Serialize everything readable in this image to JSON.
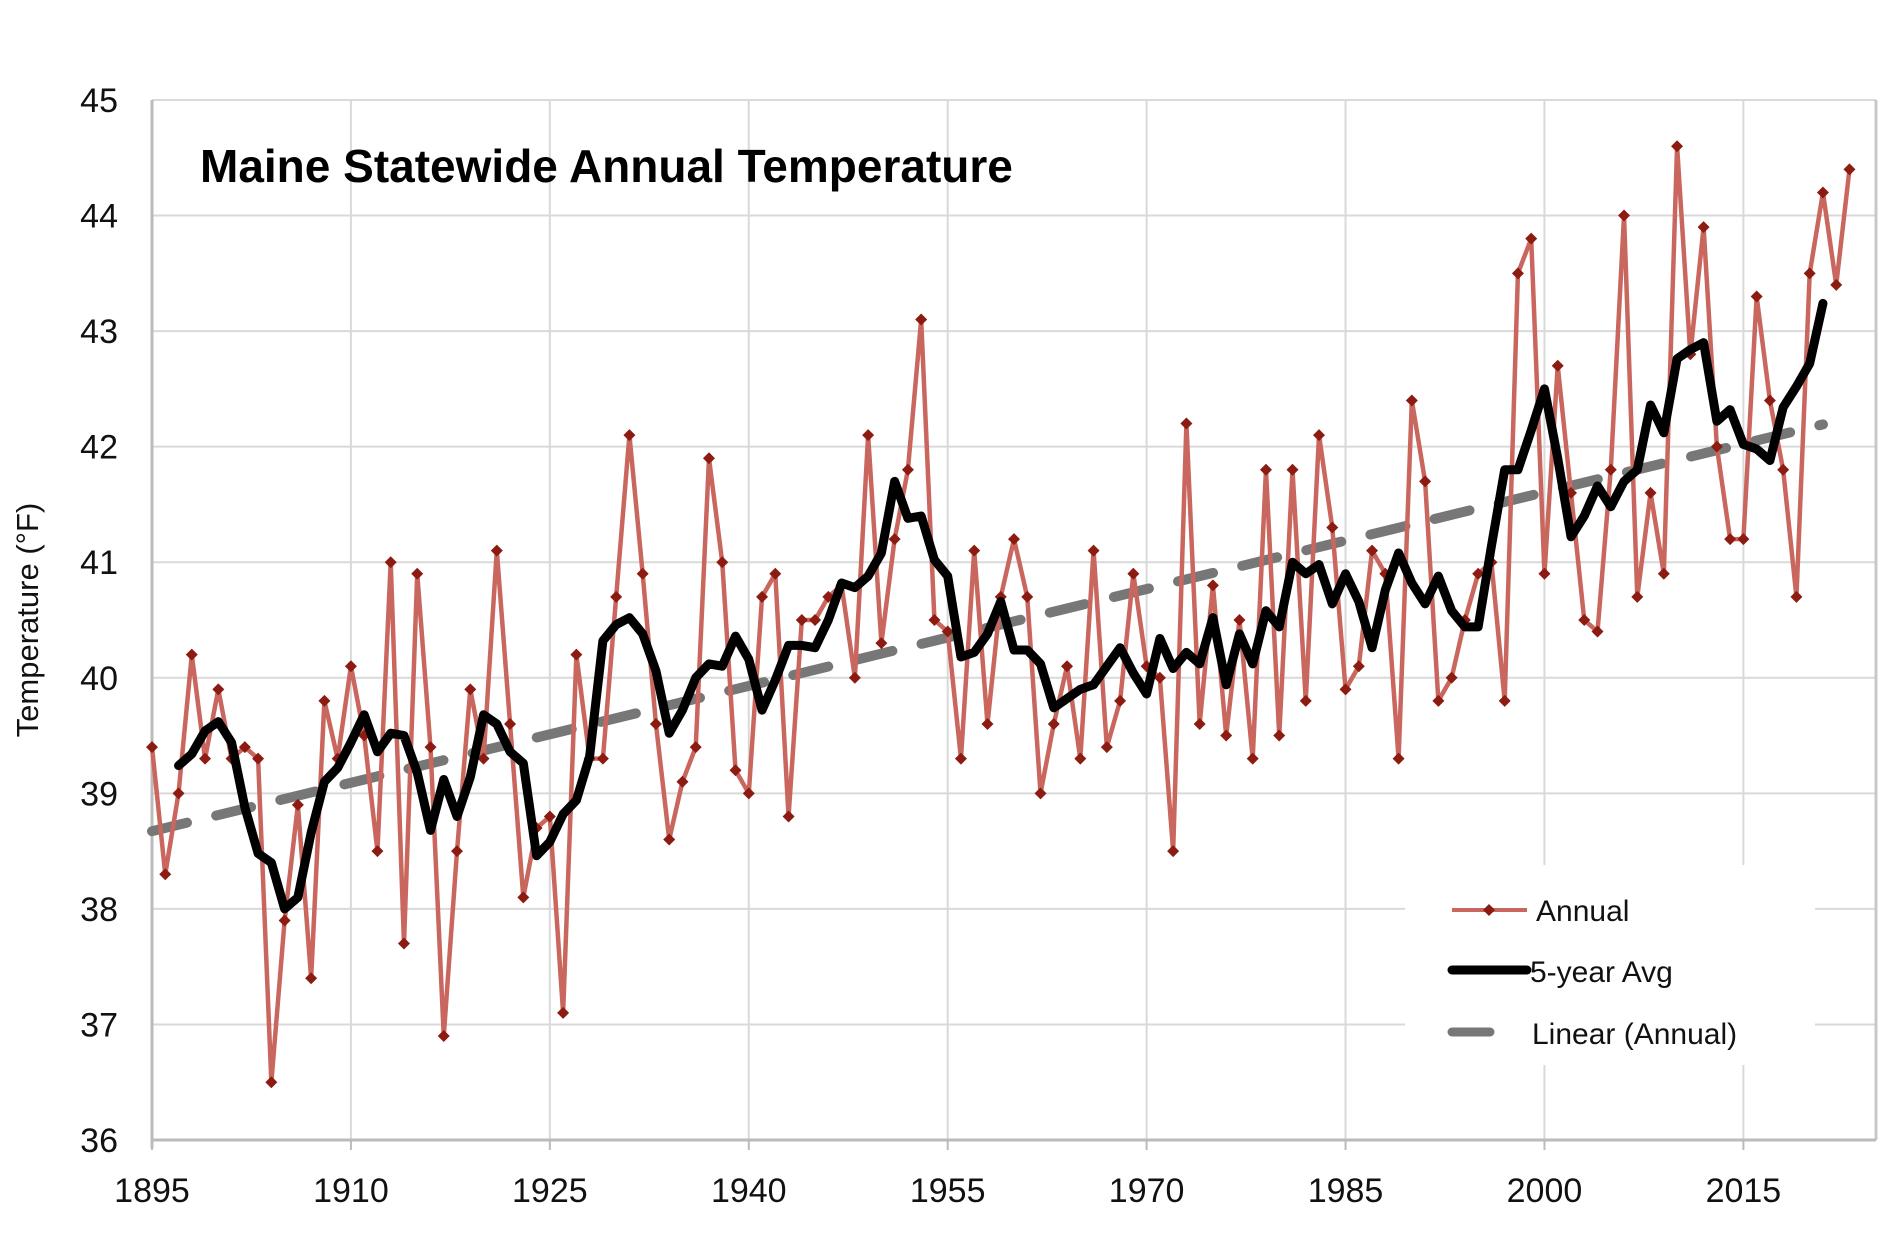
{
  "chart_data": {
    "type": "line",
    "title": "Maine Statewide Annual Temperature",
    "xlabel": "",
    "ylabel": "Temperature (°F)",
    "xlim": [
      1895,
      2025
    ],
    "ylim": [
      36,
      45
    ],
    "x_ticks": [
      1895,
      1910,
      1925,
      1940,
      1955,
      1970,
      1985,
      2000,
      2015
    ],
    "y_ticks": [
      36,
      37,
      38,
      39,
      40,
      41,
      42,
      43,
      44,
      45
    ],
    "grid": true,
    "legend_position": "bottom-right",
    "legend": [
      "Annual",
      "5-year Avg",
      "Linear (Annual)"
    ],
    "colors": {
      "annual_line": "#c9675f",
      "annual_marker": "#8c1c12",
      "avg": "#000000",
      "trend": "#777777",
      "grid": "#d9d9d9"
    },
    "x_start": 1895,
    "series": [
      {
        "name": "Annual",
        "values": [
          39.4,
          38.3,
          39.0,
          40.2,
          39.3,
          39.9,
          39.3,
          39.4,
          39.3,
          36.5,
          37.9,
          38.9,
          37.4,
          39.8,
          39.3,
          40.1,
          39.5,
          38.5,
          41.0,
          37.7,
          40.9,
          39.4,
          36.9,
          38.5,
          39.9,
          39.3,
          41.1,
          39.6,
          38.1,
          38.7,
          38.8,
          37.1,
          40.2,
          39.3,
          39.3,
          40.7,
          42.1,
          40.9,
          39.6,
          38.6,
          39.1,
          39.4,
          41.9,
          41.0,
          39.2,
          39.0,
          40.7,
          40.9,
          38.8,
          40.5,
          40.5,
          40.7,
          40.8,
          40.0,
          42.1,
          40.3,
          41.2,
          41.8,
          43.1,
          40.5,
          40.4,
          39.3,
          41.1,
          39.6,
          40.7,
          41.2,
          40.7,
          39.0,
          39.6,
          40.1,
          39.3,
          41.1,
          39.4,
          39.8,
          40.9,
          40.1,
          40.0,
          38.5,
          42.2,
          39.6,
          40.8,
          39.5,
          40.5,
          39.3,
          41.8,
          39.5,
          41.8,
          39.8,
          42.1,
          41.3,
          39.9,
          40.1,
          41.1,
          40.9,
          39.3,
          42.4,
          41.7,
          39.8,
          40.0,
          40.5,
          40.9,
          41.0,
          39.8,
          43.5,
          43.8,
          40.9,
          42.7,
          41.6,
          40.5,
          40.4,
          41.8,
          44.0,
          40.7,
          41.6,
          40.9,
          44.6,
          42.8,
          43.9,
          42.0,
          41.2,
          41.2,
          43.3,
          42.4,
          41.8,
          40.7,
          43.5,
          44.2,
          43.4,
          44.4
        ]
      },
      {
        "name": "5-year Avg",
        "method": "centered 5-year moving average of Annual"
      },
      {
        "name": "Linear (Annual)",
        "method": "least-squares linear fit of Annual"
      }
    ]
  }
}
